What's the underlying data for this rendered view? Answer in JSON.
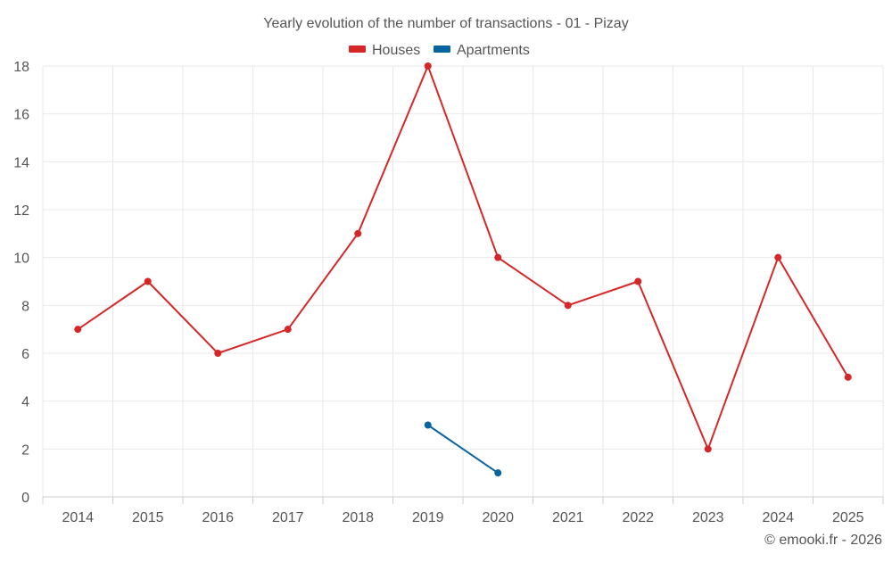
{
  "chart_data": {
    "type": "line",
    "title": "Yearly evolution of the number of transactions - 01 - Pizay",
    "xlabel": "",
    "ylabel": "",
    "categories": [
      "2014",
      "2015",
      "2016",
      "2017",
      "2018",
      "2019",
      "2020",
      "2021",
      "2022",
      "2023",
      "2024",
      "2025"
    ],
    "ylim": [
      0,
      18
    ],
    "yticks": [
      "0",
      "2",
      "4",
      "6",
      "8",
      "10",
      "12",
      "14",
      "16",
      "18"
    ],
    "grid": true,
    "legend_position": "top-center",
    "series": [
      {
        "name": "Houses",
        "color": "#d62728",
        "values": [
          7,
          9,
          6,
          7,
          11,
          18,
          10,
          8,
          9,
          2,
          10,
          5
        ]
      },
      {
        "name": "Apartments",
        "color": "#08649e",
        "values": [
          null,
          null,
          null,
          null,
          null,
          3,
          1,
          null,
          null,
          null,
          null,
          null
        ]
      }
    ]
  },
  "credit": "© emooki.fr - 2026"
}
